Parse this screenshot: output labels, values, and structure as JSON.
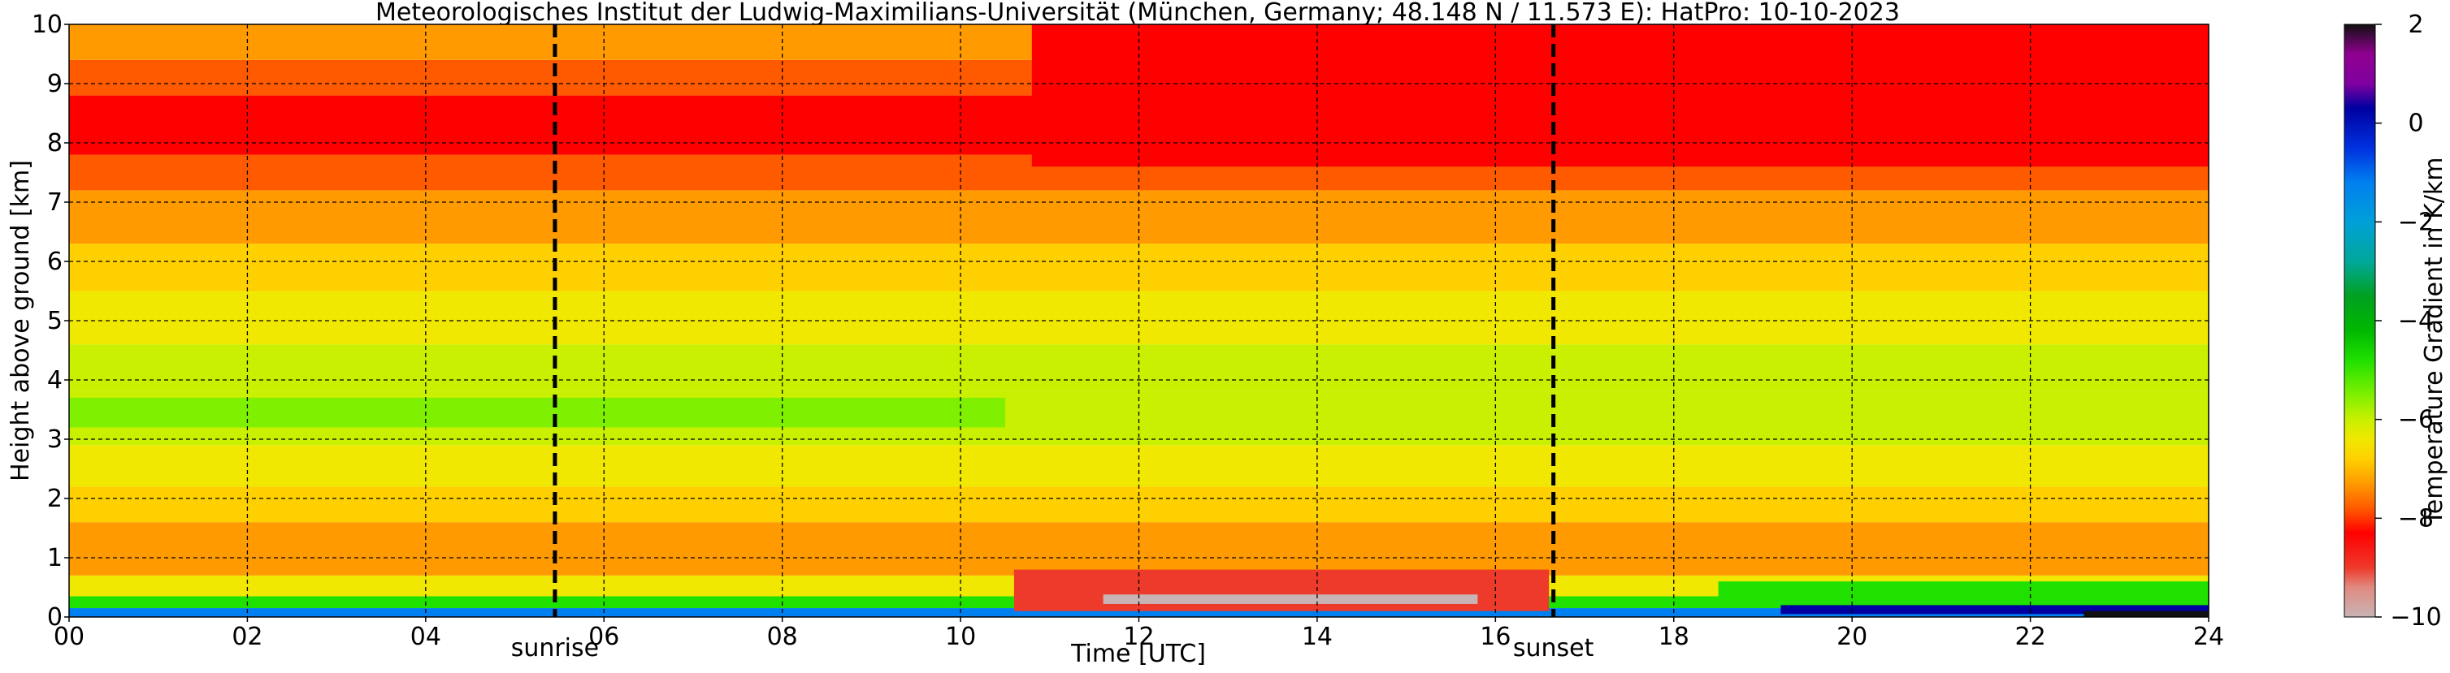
{
  "chart_data": {
    "type": "heatmap",
    "title": "Meteorologisches Institut der Ludwig-Maximilians-Universität (München, Germany; 48.148 N / 11.573 E):    HatPro: 10-10-2023",
    "xlabel": "Time [UTC]",
    "ylabel": "Height above ground [km]",
    "xlim": [
      0,
      24
    ],
    "ylim": [
      0,
      10
    ],
    "x_ticks": [
      0,
      2,
      4,
      6,
      8,
      10,
      12,
      14,
      16,
      18,
      20,
      22,
      24
    ],
    "x_tick_labels": [
      "00",
      "02",
      "04",
      "06",
      "08",
      "10",
      "12",
      "14",
      "16",
      "18",
      "20",
      "22",
      "24"
    ],
    "y_ticks": [
      0,
      1,
      2,
      3,
      4,
      5,
      6,
      7,
      8,
      9,
      10
    ],
    "y_tick_labels": [
      "0",
      "1",
      "2",
      "3",
      "4",
      "5",
      "6",
      "7",
      "8",
      "9",
      "10"
    ],
    "grid": true,
    "markers": [
      {
        "label": "sunrise",
        "x": 5.45
      },
      {
        "label": "sunset",
        "x": 16.65
      }
    ],
    "colorbar": {
      "label": "Temperature Gradient in K/km",
      "range": [
        -10,
        2
      ],
      "ticks": [
        2,
        0,
        -2,
        -4,
        -6,
        -8,
        -10
      ],
      "tick_labels": [
        "2",
        "0",
        "−2",
        "−4",
        "−6",
        "−8",
        "−10"
      ],
      "stops": [
        {
          "value": -10,
          "color": "#c8b4b4"
        },
        {
          "value": -9.4,
          "color": "#e08a80"
        },
        {
          "value": -9.0,
          "color": "#ee3a2a"
        },
        {
          "value": -8.3,
          "color": "#ff0000"
        },
        {
          "value": -7.8,
          "color": "#ff5a00"
        },
        {
          "value": -7.3,
          "color": "#ff9a00"
        },
        {
          "value": -6.8,
          "color": "#ffd000"
        },
        {
          "value": -6.4,
          "color": "#f0e800"
        },
        {
          "value": -6.0,
          "color": "#c8f000"
        },
        {
          "value": -5.5,
          "color": "#7ef000"
        },
        {
          "value": -4.8,
          "color": "#20e000"
        },
        {
          "value": -4.2,
          "color": "#00b800"
        },
        {
          "value": -3.5,
          "color": "#00a020"
        },
        {
          "value": -2.8,
          "color": "#00a89a"
        },
        {
          "value": -2.0,
          "color": "#00a0d8"
        },
        {
          "value": -1.2,
          "color": "#0080f0"
        },
        {
          "value": -0.5,
          "color": "#0030e0"
        },
        {
          "value": 0.3,
          "color": "#0000a0"
        },
        {
          "value": 0.8,
          "color": "#8000a0"
        },
        {
          "value": 1.4,
          "color": "#900090"
        },
        {
          "value": 2.0,
          "color": "#101010"
        }
      ]
    },
    "layers": [
      {
        "h0": 0.0,
        "h1": 0.15,
        "value": -1.0
      },
      {
        "h0": 0.15,
        "h1": 0.35,
        "value": -4.5
      },
      {
        "h0": 0.35,
        "h1": 0.7,
        "value": -6.3
      },
      {
        "h0": 0.7,
        "h1": 1.0,
        "value": -7.2
      },
      {
        "h0": 1.0,
        "h1": 1.6,
        "value": -7.0
      },
      {
        "h0": 1.6,
        "h1": 2.2,
        "value": -6.7
      },
      {
        "h0": 2.2,
        "h1": 2.9,
        "value": -6.2
      },
      {
        "h0": 2.9,
        "h1": 3.8,
        "value": -5.6
      },
      {
        "h0": 3.8,
        "h1": 4.6,
        "value": -6.0
      },
      {
        "h0": 4.6,
        "h1": 5.5,
        "value": -6.4
      },
      {
        "h0": 5.5,
        "h1": 6.3,
        "value": -6.8
      },
      {
        "h0": 6.3,
        "h1": 7.2,
        "value": -7.2
      },
      {
        "h0": 7.2,
        "h1": 7.8,
        "value": -7.5
      },
      {
        "h0": 7.8,
        "h1": 8.8,
        "value": -7.9
      },
      {
        "h0": 8.8,
        "h1": 9.4,
        "value": -7.6
      },
      {
        "h0": 9.4,
        "h1": 10.0,
        "value": -7.0
      }
    ],
    "features": [
      {
        "x0": 10.8,
        "x1": 24,
        "h0": 7.6,
        "h1": 10.0,
        "value": -8.3
      },
      {
        "x0": 10.6,
        "x1": 16.6,
        "h0": 0.1,
        "h1": 0.8,
        "value": -8.6
      },
      {
        "x0": 11.6,
        "x1": 15.8,
        "h0": 0.22,
        "h1": 0.38,
        "value": -9.9
      },
      {
        "x0": 18.5,
        "x1": 24,
        "h0": 0.2,
        "h1": 0.6,
        "value": -4.6
      },
      {
        "x0": 19.2,
        "x1": 24,
        "h0": 0.05,
        "h1": 0.2,
        "value": 0.5
      },
      {
        "x0": 22.6,
        "x1": 24,
        "h0": 0.0,
        "h1": 0.1,
        "value": 2.0
      },
      {
        "x0": 0,
        "x1": 10.5,
        "h0": 3.2,
        "h1": 3.7,
        "value": -5.3
      }
    ]
  }
}
